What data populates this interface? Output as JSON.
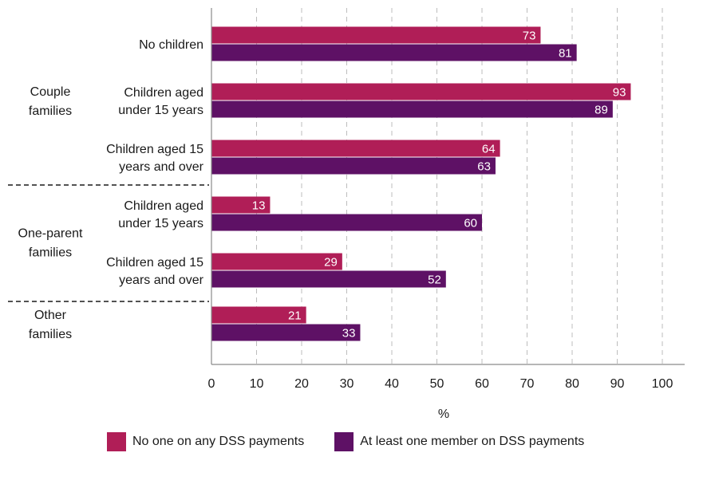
{
  "chart_data": {
    "type": "bar",
    "orientation": "horizontal",
    "xlabel": "%",
    "xlim": [
      0,
      100
    ],
    "x_ticks": [
      "0",
      "10",
      "20",
      "30",
      "40",
      "50",
      "60",
      "70",
      "80",
      "90",
      "100"
    ],
    "grid": "vertical dashed",
    "legend_position": "bottom",
    "groups": [
      {
        "label_lines": [
          "Couple",
          "families"
        ],
        "categories": [
          {
            "label_lines": [
              "No children"
            ],
            "values": [
              73,
              81
            ]
          },
          {
            "label_lines": [
              "Children aged",
              "under 15 years"
            ],
            "values": [
              93,
              89
            ]
          },
          {
            "label_lines": [
              "Children aged 15",
              "years and over"
            ],
            "values": [
              64,
              63
            ]
          }
        ]
      },
      {
        "label_lines": [
          "One-parent",
          "families"
        ],
        "categories": [
          {
            "label_lines": [
              "Children aged",
              "under 15 years"
            ],
            "values": [
              13,
              60
            ]
          },
          {
            "label_lines": [
              "Children aged 15",
              "years and over"
            ],
            "values": [
              29,
              52
            ]
          }
        ]
      },
      {
        "label_lines": [
          "Other",
          "families"
        ],
        "categories": [
          {
            "label_lines": [],
            "values": [
              21,
              33
            ]
          }
        ]
      }
    ],
    "series": [
      {
        "name": "No one on any DSS payments",
        "color": "#b01e57"
      },
      {
        "name": "At least one member on DSS payments",
        "color": "#5e1165"
      }
    ]
  }
}
